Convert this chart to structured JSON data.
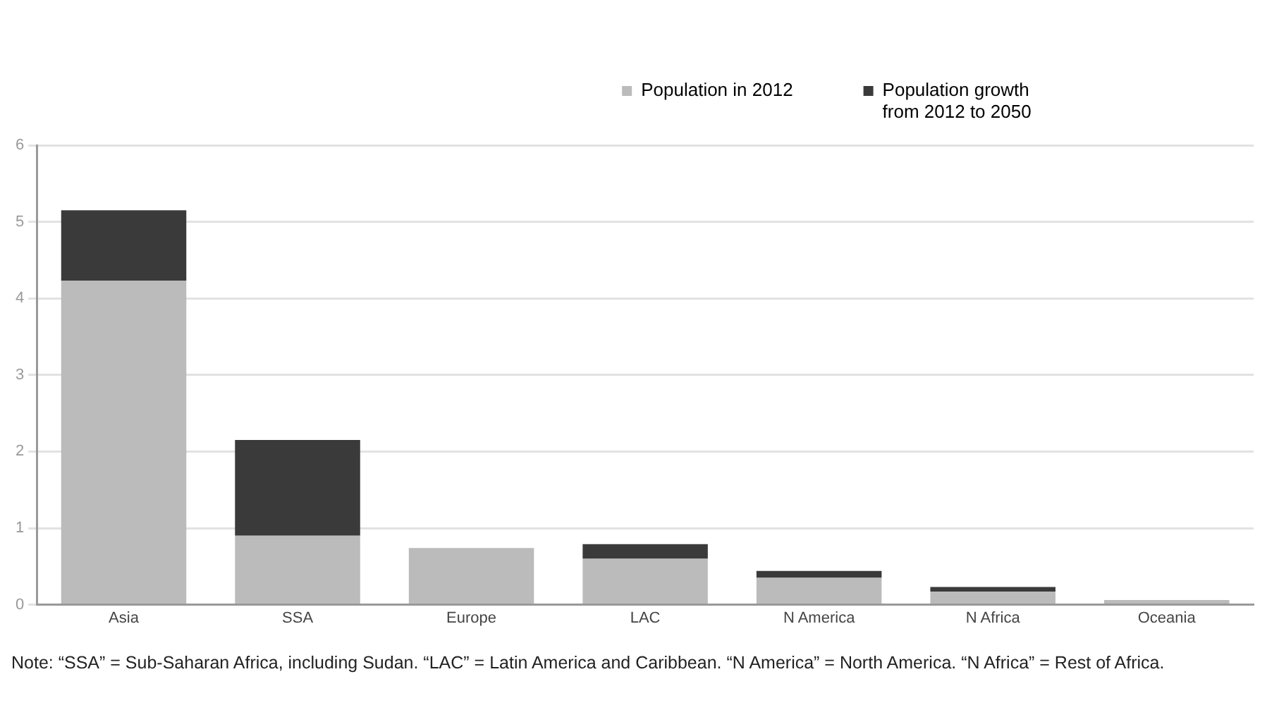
{
  "chart_data": {
    "type": "bar",
    "stacked": true,
    "categories": [
      "Asia",
      "SSA",
      "Europe",
      "LAC",
      "N America",
      "N Africa",
      "Oceania"
    ],
    "series": [
      {
        "name": "Population in 2012",
        "color": "#bbbbbb",
        "values": [
          4.23,
          0.9,
          0.74,
          0.6,
          0.35,
          0.17,
          0.06
        ]
      },
      {
        "name": "Population growth from 2012 to 2050",
        "color": "#3a3a3a",
        "values": [
          0.92,
          1.25,
          0,
          0.19,
          0.09,
          0.06,
          0
        ]
      }
    ],
    "ylim": [
      0,
      6
    ],
    "yticks": [
      0,
      1,
      2,
      3,
      4,
      5,
      6
    ],
    "grid": "y",
    "legend": "top right",
    "annotations": [
      "Note: “SSA” = Sub-Saharan Africa, including Sudan. “LAC” = Latin America and Caribbean. “N America” = North America. “N Africa” = Rest of Africa."
    ]
  }
}
